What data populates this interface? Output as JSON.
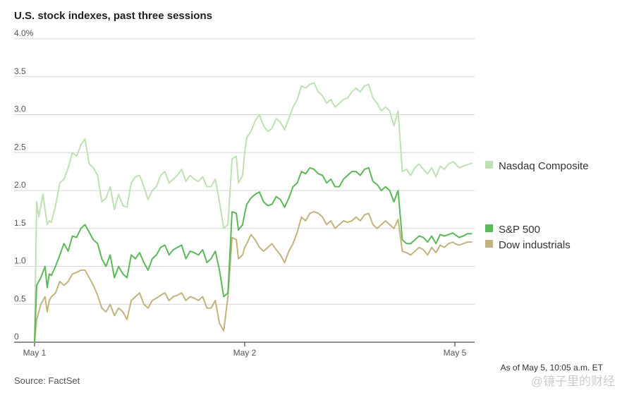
{
  "chart_data": {
    "type": "line",
    "title": "U.S. stock indexes, past three sessions",
    "ylim": [
      0,
      4.0
    ],
    "y_ticks": [
      {
        "value": 0,
        "label": "0"
      },
      {
        "value": 0.5,
        "label": "0.5"
      },
      {
        "value": 1.0,
        "label": "1.0"
      },
      {
        "value": 1.5,
        "label": "1.5"
      },
      {
        "value": 2.0,
        "label": "2.0"
      },
      {
        "value": 2.5,
        "label": "2.5"
      },
      {
        "value": 3.0,
        "label": "3.0"
      },
      {
        "value": 3.5,
        "label": "3.5"
      },
      {
        "value": 4.0,
        "label": "4.0%"
      }
    ],
    "xlim": [
      0,
      2.09
    ],
    "x_ticks": [
      {
        "value": 0,
        "label": "May 1"
      },
      {
        "value": 1,
        "label": "May 2"
      },
      {
        "value": 2,
        "label": "May 5"
      }
    ],
    "grid": true,
    "legend_position": "right",
    "source": "Source: FactSet",
    "as_of": "As of May 5, 10:05 a.m. ET",
    "series": [
      {
        "name": "Nasdaq Composite",
        "color": "#bfe0b5",
        "x": [
          0,
          0.01,
          0.02,
          0.04,
          0.06,
          0.07,
          0.08,
          0.1,
          0.12,
          0.14,
          0.16,
          0.18,
          0.2,
          0.22,
          0.24,
          0.26,
          0.28,
          0.3,
          0.32,
          0.34,
          0.36,
          0.38,
          0.4,
          0.42,
          0.44,
          0.46,
          0.48,
          0.5,
          0.52,
          0.54,
          0.56,
          0.58,
          0.6,
          0.62,
          0.64,
          0.66,
          0.68,
          0.7,
          0.72,
          0.74,
          0.76,
          0.78,
          0.8,
          0.82,
          0.84,
          0.86,
          0.88,
          0.9,
          0.92,
          0.94,
          0.96,
          0.97,
          0.99,
          1.0,
          1.01,
          1.03,
          1.05,
          1.07,
          1.09,
          1.11,
          1.13,
          1.15,
          1.17,
          1.19,
          1.21,
          1.23,
          1.25,
          1.27,
          1.29,
          1.31,
          1.33,
          1.35,
          1.37,
          1.39,
          1.41,
          1.43,
          1.45,
          1.47,
          1.49,
          1.51,
          1.53,
          1.55,
          1.57,
          1.59,
          1.61,
          1.63,
          1.65,
          1.67,
          1.69,
          1.71,
          1.73,
          1.75,
          1.77,
          1.79,
          1.81,
          1.83,
          1.85,
          1.87,
          1.89,
          1.91,
          1.93,
          1.95,
          1.97,
          1.99,
          2.0,
          2.02,
          2.04,
          2.06,
          2.08
        ],
        "values": [
          0.05,
          1.85,
          1.65,
          1.95,
          1.55,
          1.6,
          1.58,
          1.8,
          2.1,
          2.15,
          2.3,
          2.5,
          2.45,
          2.6,
          2.68,
          2.35,
          2.3,
          2.2,
          1.85,
          1.9,
          2.05,
          1.75,
          1.95,
          1.8,
          1.78,
          2.1,
          2.18,
          2.2,
          2.05,
          1.88,
          2.0,
          2.05,
          2.2,
          2.25,
          2.1,
          2.15,
          2.2,
          2.28,
          2.12,
          2.2,
          2.15,
          2.12,
          2.18,
          2.05,
          2.05,
          2.15,
          1.85,
          1.5,
          1.55,
          2.42,
          2.45,
          2.1,
          2.2,
          2.5,
          2.7,
          2.78,
          2.92,
          3.0,
          2.85,
          2.78,
          2.82,
          2.95,
          2.9,
          2.8,
          2.95,
          3.1,
          3.2,
          3.38,
          3.35,
          3.4,
          3.42,
          3.3,
          3.25,
          3.15,
          3.2,
          3.1,
          3.15,
          3.2,
          3.22,
          3.3,
          3.35,
          3.3,
          3.38,
          3.4,
          3.22,
          3.15,
          3.05,
          3.1,
          3.05,
          2.85,
          3.05,
          2.25,
          2.28,
          2.2,
          2.3,
          2.35,
          2.28,
          2.22,
          2.3,
          2.18,
          2.32,
          2.28,
          2.35,
          2.38,
          2.36,
          2.3,
          2.32,
          2.34,
          2.36
        ]
      },
      {
        "name": "S&P 500",
        "color": "#5cb85a",
        "x": [
          0,
          0.01,
          0.03,
          0.05,
          0.06,
          0.07,
          0.08,
          0.1,
          0.12,
          0.14,
          0.16,
          0.18,
          0.2,
          0.22,
          0.24,
          0.26,
          0.28,
          0.3,
          0.32,
          0.34,
          0.36,
          0.38,
          0.4,
          0.42,
          0.44,
          0.46,
          0.48,
          0.5,
          0.52,
          0.54,
          0.56,
          0.58,
          0.6,
          0.62,
          0.64,
          0.66,
          0.68,
          0.7,
          0.72,
          0.74,
          0.76,
          0.78,
          0.8,
          0.82,
          0.84,
          0.86,
          0.88,
          0.9,
          0.92,
          0.94,
          0.96,
          0.97,
          0.99,
          1.0,
          1.01,
          1.03,
          1.05,
          1.07,
          1.09,
          1.11,
          1.13,
          1.15,
          1.17,
          1.19,
          1.21,
          1.23,
          1.25,
          1.27,
          1.29,
          1.31,
          1.33,
          1.35,
          1.37,
          1.39,
          1.41,
          1.43,
          1.45,
          1.47,
          1.49,
          1.51,
          1.53,
          1.55,
          1.57,
          1.59,
          1.61,
          1.63,
          1.65,
          1.67,
          1.69,
          1.71,
          1.73,
          1.75,
          1.77,
          1.79,
          1.81,
          1.83,
          1.85,
          1.87,
          1.89,
          1.91,
          1.93,
          1.95,
          1.97,
          1.99,
          2.0,
          2.02,
          2.04,
          2.06,
          2.08
        ],
        "values": [
          0.0,
          0.75,
          0.85,
          1.0,
          0.72,
          0.9,
          0.88,
          1.0,
          1.15,
          1.3,
          1.2,
          1.4,
          1.38,
          1.5,
          1.55,
          1.45,
          1.35,
          1.3,
          1.1,
          1.0,
          1.15,
          0.85,
          1.0,
          0.9,
          0.85,
          1.15,
          1.1,
          1.18,
          1.05,
          0.95,
          1.1,
          1.15,
          1.25,
          1.28,
          1.15,
          1.22,
          1.25,
          1.28,
          1.1,
          1.2,
          1.18,
          1.15,
          1.22,
          1.05,
          1.1,
          1.2,
          0.95,
          0.6,
          0.65,
          1.72,
          1.7,
          1.48,
          1.55,
          1.7,
          1.82,
          1.9,
          1.95,
          1.98,
          1.85,
          1.8,
          1.82,
          1.92,
          1.88,
          1.78,
          1.9,
          2.05,
          2.1,
          2.25,
          2.22,
          2.3,
          2.28,
          2.22,
          2.2,
          2.1,
          2.15,
          2.05,
          2.05,
          2.15,
          2.2,
          2.25,
          2.25,
          2.2,
          2.28,
          2.3,
          2.12,
          2.08,
          2.0,
          2.05,
          2.0,
          1.85,
          2.0,
          1.35,
          1.3,
          1.3,
          1.35,
          1.4,
          1.38,
          1.32,
          1.4,
          1.3,
          1.42,
          1.4,
          1.42,
          1.44,
          1.42,
          1.38,
          1.4,
          1.43,
          1.43
        ]
      },
      {
        "name": "Dow industrials",
        "color": "#c1b47e",
        "x": [
          0,
          0.01,
          0.03,
          0.05,
          0.06,
          0.07,
          0.08,
          0.1,
          0.12,
          0.14,
          0.16,
          0.18,
          0.2,
          0.22,
          0.24,
          0.26,
          0.28,
          0.3,
          0.32,
          0.34,
          0.36,
          0.38,
          0.4,
          0.42,
          0.44,
          0.46,
          0.48,
          0.5,
          0.52,
          0.54,
          0.56,
          0.58,
          0.6,
          0.62,
          0.64,
          0.66,
          0.68,
          0.7,
          0.72,
          0.74,
          0.76,
          0.78,
          0.8,
          0.82,
          0.84,
          0.86,
          0.88,
          0.9,
          0.92,
          0.94,
          0.96,
          0.97,
          0.99,
          1.0,
          1.01,
          1.03,
          1.05,
          1.07,
          1.09,
          1.11,
          1.13,
          1.15,
          1.17,
          1.19,
          1.21,
          1.23,
          1.25,
          1.27,
          1.29,
          1.31,
          1.33,
          1.35,
          1.37,
          1.39,
          1.41,
          1.43,
          1.45,
          1.47,
          1.49,
          1.51,
          1.53,
          1.55,
          1.57,
          1.59,
          1.61,
          1.63,
          1.65,
          1.67,
          1.69,
          1.71,
          1.73,
          1.75,
          1.77,
          1.79,
          1.81,
          1.83,
          1.85,
          1.87,
          1.89,
          1.91,
          1.93,
          1.95,
          1.97,
          1.99,
          2.0,
          2.02,
          2.04,
          2.06,
          2.08
        ],
        "values": [
          0.0,
          0.3,
          0.5,
          0.6,
          0.4,
          0.55,
          0.6,
          0.65,
          0.8,
          0.75,
          0.8,
          0.9,
          0.92,
          0.95,
          0.95,
          0.85,
          0.75,
          0.62,
          0.45,
          0.4,
          0.5,
          0.35,
          0.45,
          0.4,
          0.3,
          0.55,
          0.6,
          0.65,
          0.5,
          0.45,
          0.55,
          0.58,
          0.62,
          0.65,
          0.55,
          0.6,
          0.62,
          0.65,
          0.55,
          0.6,
          0.58,
          0.55,
          0.6,
          0.45,
          0.45,
          0.55,
          0.25,
          0.15,
          0.6,
          1.38,
          1.35,
          1.1,
          1.15,
          1.25,
          1.3,
          1.42,
          1.35,
          1.25,
          1.2,
          1.25,
          1.3,
          1.22,
          1.15,
          1.05,
          1.2,
          1.3,
          1.45,
          1.65,
          1.6,
          1.7,
          1.72,
          1.7,
          1.65,
          1.55,
          1.6,
          1.5,
          1.55,
          1.6,
          1.58,
          1.6,
          1.65,
          1.6,
          1.68,
          1.7,
          1.55,
          1.5,
          1.55,
          1.6,
          1.55,
          1.5,
          1.62,
          1.2,
          1.18,
          1.15,
          1.2,
          1.25,
          1.22,
          1.15,
          1.25,
          1.18,
          1.28,
          1.25,
          1.3,
          1.32,
          1.3,
          1.28,
          1.3,
          1.32,
          1.32
        ]
      }
    ]
  },
  "watermark": "@镜子里的财经"
}
